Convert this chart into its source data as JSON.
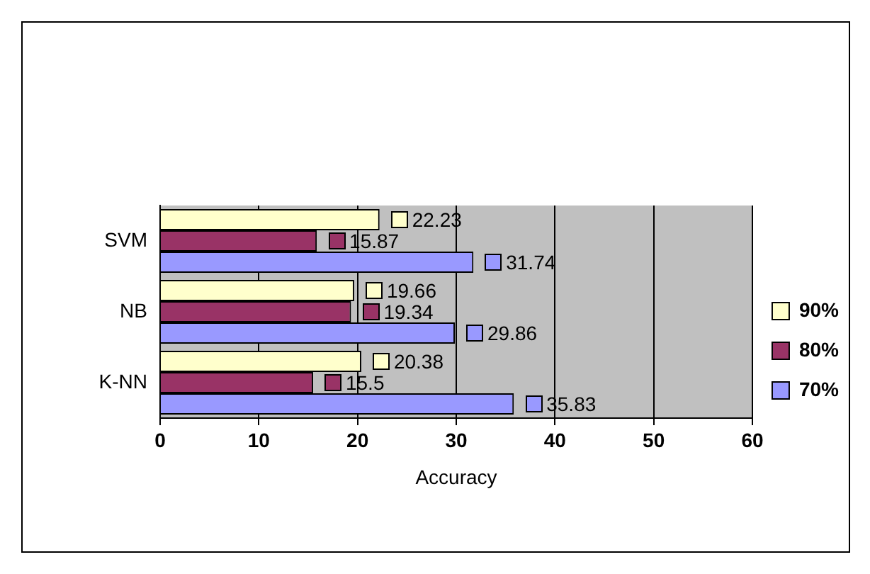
{
  "chart_data": {
    "type": "bar",
    "orientation": "horizontal",
    "xlabel": "Accuracy",
    "categories": [
      "SVM",
      "NB",
      "K-NN"
    ],
    "series": [
      {
        "name": "90%",
        "color": "#ffffcc",
        "values": [
          22.23,
          19.66,
          20.38
        ]
      },
      {
        "name": "80%",
        "color": "#993366",
        "values": [
          15.87,
          19.34,
          15.5
        ]
      },
      {
        "name": "70%",
        "color": "#9999ff",
        "values": [
          31.74,
          29.86,
          35.83
        ]
      }
    ],
    "xlim": [
      0,
      60
    ],
    "xticks": [
      0,
      10,
      20,
      30,
      40,
      50,
      60
    ],
    "grid": "x",
    "legend": "right",
    "data_labels": true
  }
}
